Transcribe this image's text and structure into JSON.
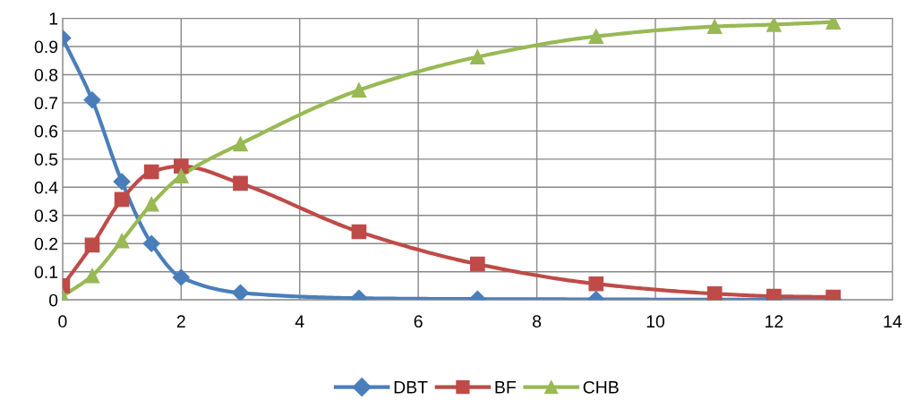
{
  "chart_data": {
    "type": "line",
    "x": [
      0,
      0.5,
      1,
      1.5,
      2,
      3,
      5,
      7,
      9,
      11,
      12,
      13
    ],
    "series": [
      {
        "name": "DBT",
        "color": "#4a7ebb",
        "marker": "diamond",
        "values": [
          0.93,
          0.71,
          0.42,
          0.2,
          0.08,
          0.025,
          0.006,
          0.003,
          0.002,
          0.001,
          0.001,
          0.001
        ]
      },
      {
        "name": "BF",
        "color": "#be4b48",
        "marker": "square",
        "values": [
          0.05,
          0.195,
          0.357,
          0.455,
          0.475,
          0.414,
          0.242,
          0.127,
          0.057,
          0.022,
          0.013,
          0.01
        ]
      },
      {
        "name": "CHB",
        "color": "#98b954",
        "marker": "triangle",
        "values": [
          0.013,
          0.086,
          0.21,
          0.34,
          0.44,
          0.554,
          0.745,
          0.863,
          0.936,
          0.971,
          0.978,
          0.987
        ]
      }
    ],
    "xlim": [
      0,
      14
    ],
    "xticks": [
      0,
      2,
      4,
      6,
      8,
      10,
      12,
      14
    ],
    "ylim": [
      0,
      1
    ],
    "yticks": [
      0,
      0.1,
      0.2,
      0.3,
      0.4,
      0.5,
      0.6,
      0.7,
      0.8,
      0.9,
      1
    ],
    "grid": true,
    "legend": "bottom",
    "line_style": "solid"
  }
}
